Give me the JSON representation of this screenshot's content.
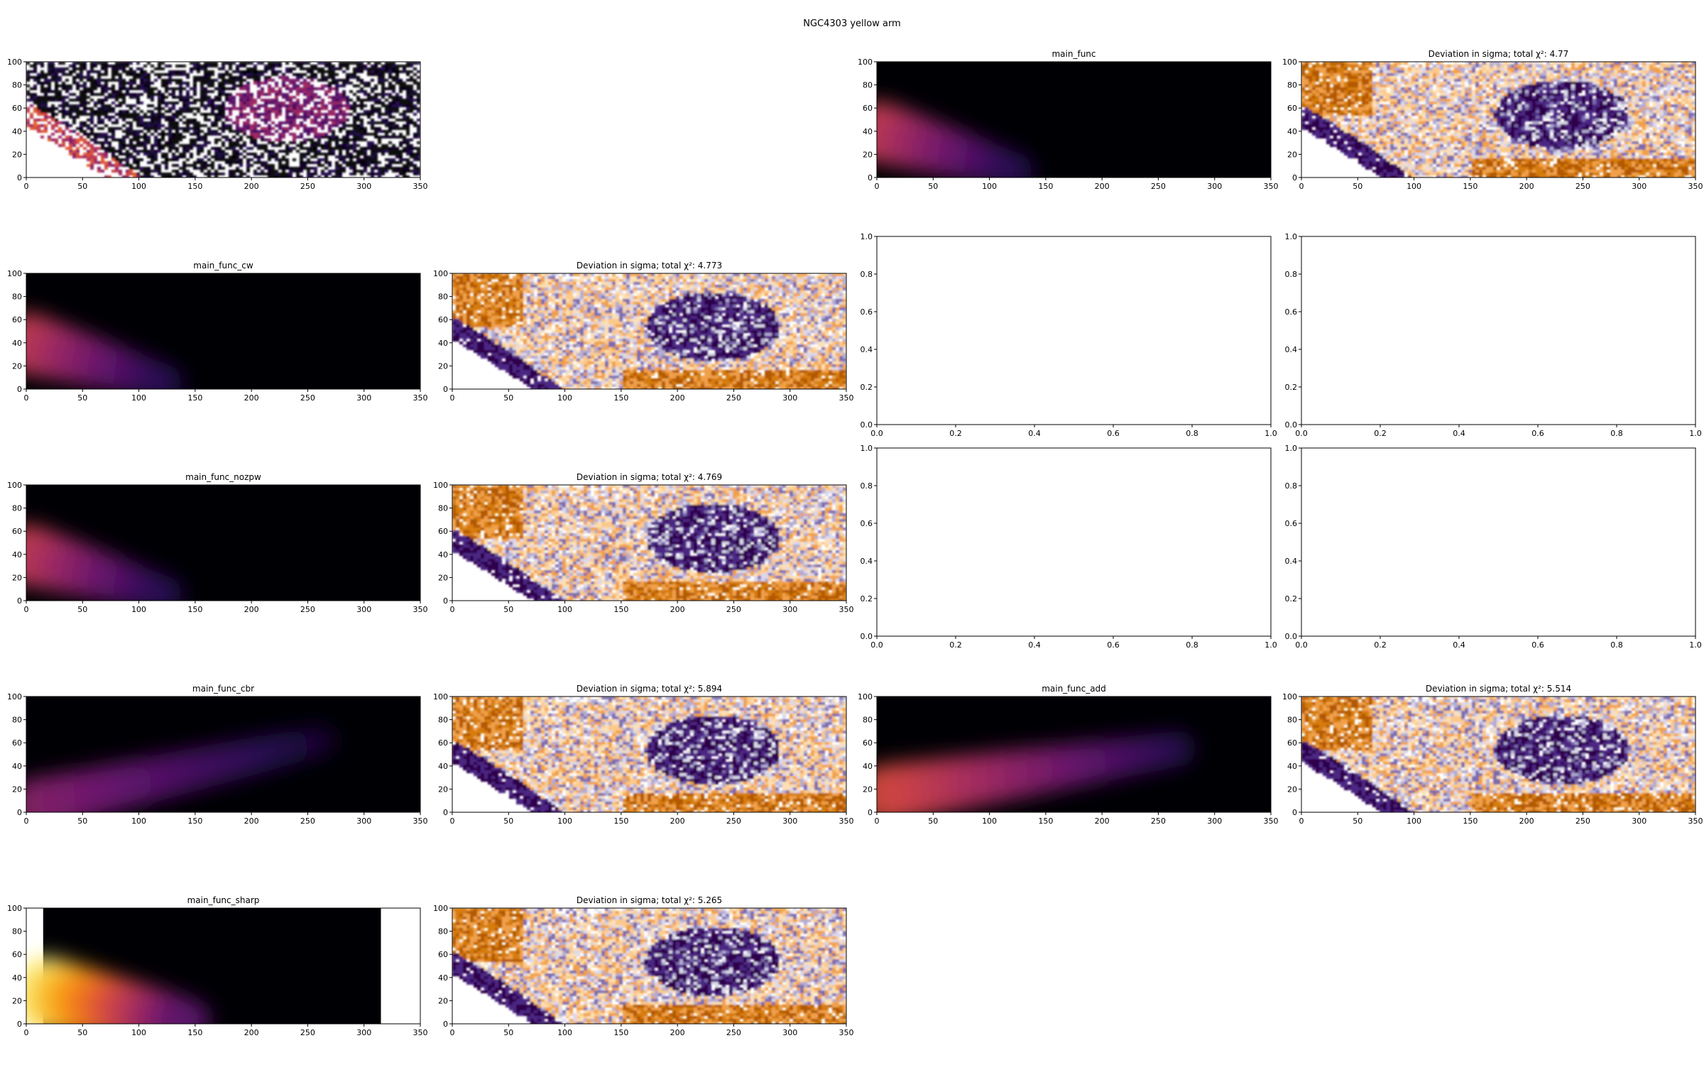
{
  "figure": {
    "title": "NGC4303 yellow arm"
  },
  "colors": {
    "inferno_dark": "#000004",
    "inferno_purple": "#57106e",
    "inferno_magenta": "#bc3754",
    "inferno_orange": "#f98e09",
    "inferno_yellow": "#fcffa4",
    "puor_orange": "#b35806",
    "puor_purple": "#2d004b"
  },
  "chart_data": [
    {
      "id": "p00",
      "type": "heatmap",
      "title": "",
      "content": "data",
      "xlim": [
        0,
        350
      ],
      "ylim": [
        0,
        100
      ],
      "xticks": [
        0,
        50,
        100,
        150,
        200,
        250,
        300,
        350
      ],
      "yticks": [
        0,
        20,
        40,
        60,
        80,
        100
      ]
    },
    {
      "id": "p02",
      "type": "heatmap",
      "title": "main_func",
      "content": "model",
      "model": {
        "band_start": [
          0,
          40
        ],
        "band_end": [
          125,
          5
        ],
        "width": 22,
        "peak": 0.55
      },
      "xlim": [
        0,
        350
      ],
      "ylim": [
        0,
        100
      ],
      "xticks": [
        0,
        50,
        100,
        150,
        200,
        250,
        300,
        350
      ],
      "yticks": [
        0,
        20,
        40,
        60,
        80,
        100
      ]
    },
    {
      "id": "p03",
      "type": "heatmap",
      "title": "Deviation in sigma; total χ²: 4.77",
      "content": "residual",
      "chi2": 4.77,
      "xlim": [
        0,
        350
      ],
      "ylim": [
        0,
        100
      ],
      "xticks": [
        0,
        50,
        100,
        150,
        200,
        250,
        300,
        350
      ],
      "yticks": [
        0,
        20,
        40,
        60,
        80,
        100
      ]
    },
    {
      "id": "p10",
      "type": "heatmap",
      "title": "main_func_cw",
      "content": "model",
      "model": {
        "band_start": [
          0,
          40
        ],
        "band_end": [
          125,
          5
        ],
        "width": 22,
        "peak": 0.55
      },
      "xlim": [
        0,
        350
      ],
      "ylim": [
        0,
        100
      ],
      "xticks": [
        0,
        50,
        100,
        150,
        200,
        250,
        300,
        350
      ],
      "yticks": [
        0,
        20,
        40,
        60,
        80,
        100
      ]
    },
    {
      "id": "p11",
      "type": "heatmap",
      "title": "Deviation in sigma; total χ²: 4.773",
      "content": "residual",
      "chi2": 4.773,
      "xlim": [
        0,
        350
      ],
      "ylim": [
        0,
        100
      ],
      "xticks": [
        0,
        50,
        100,
        150,
        200,
        250,
        300,
        350
      ],
      "yticks": [
        0,
        20,
        40,
        60,
        80,
        100
      ]
    },
    {
      "id": "p12",
      "type": "empty",
      "title": "",
      "xlim": [
        0,
        1
      ],
      "ylim": [
        0,
        1
      ],
      "xticks": [
        0.0,
        0.2,
        0.4,
        0.6,
        0.8,
        1.0
      ],
      "yticks": [
        0.0,
        0.2,
        0.4,
        0.6,
        0.8,
        1.0
      ]
    },
    {
      "id": "p13",
      "type": "empty",
      "title": "",
      "xlim": [
        0,
        1
      ],
      "ylim": [
        0,
        1
      ],
      "xticks": [
        0.0,
        0.2,
        0.4,
        0.6,
        0.8,
        1.0
      ],
      "yticks": [
        0.0,
        0.2,
        0.4,
        0.6,
        0.8,
        1.0
      ]
    },
    {
      "id": "p20",
      "type": "heatmap",
      "title": "main_func_nozpw",
      "content": "model",
      "model": {
        "band_start": [
          0,
          40
        ],
        "band_end": [
          125,
          5
        ],
        "width": 22,
        "peak": 0.55
      },
      "xlim": [
        0,
        350
      ],
      "ylim": [
        0,
        100
      ],
      "xticks": [
        0,
        50,
        100,
        150,
        200,
        250,
        300,
        350
      ],
      "yticks": [
        0,
        20,
        40,
        60,
        80,
        100
      ]
    },
    {
      "id": "p21",
      "type": "heatmap",
      "title": "Deviation in sigma; total χ²: 4.769",
      "content": "residual",
      "chi2": 4.769,
      "xlim": [
        0,
        350
      ],
      "ylim": [
        0,
        100
      ],
      "xticks": [
        0,
        50,
        100,
        150,
        200,
        250,
        300,
        350
      ],
      "yticks": [
        0,
        20,
        40,
        60,
        80,
        100
      ]
    },
    {
      "id": "p22",
      "type": "empty",
      "title": "",
      "xlim": [
        0,
        1
      ],
      "ylim": [
        0,
        1
      ],
      "xticks": [
        0.0,
        0.2,
        0.4,
        0.6,
        0.8,
        1.0
      ],
      "yticks": [
        0.0,
        0.2,
        0.4,
        0.6,
        0.8,
        1.0
      ]
    },
    {
      "id": "p23",
      "type": "empty",
      "title": "",
      "xlim": [
        0,
        1
      ],
      "ylim": [
        0,
        1
      ],
      "xticks": [
        0.0,
        0.2,
        0.4,
        0.6,
        0.8,
        1.0
      ],
      "yticks": [
        0.0,
        0.2,
        0.4,
        0.6,
        0.8,
        1.0
      ]
    },
    {
      "id": "p30",
      "type": "heatmap",
      "title": "main_func_cbr",
      "content": "model",
      "model": {
        "band_start": [
          5,
          5
        ],
        "band_end": [
          262,
          62
        ],
        "width": 20,
        "peak": 0.38
      },
      "xlim": [
        0,
        350
      ],
      "ylim": [
        0,
        100
      ],
      "xticks": [
        0,
        50,
        100,
        150,
        200,
        250,
        300,
        350
      ],
      "yticks": [
        0,
        20,
        40,
        60,
        80,
        100
      ]
    },
    {
      "id": "p31",
      "type": "heatmap",
      "title": "Deviation in sigma; total χ²: 5.894",
      "content": "residual",
      "chi2": 5.894,
      "xlim": [
        0,
        350
      ],
      "ylim": [
        0,
        100
      ],
      "xticks": [
        0,
        50,
        100,
        150,
        200,
        250,
        300,
        350
      ],
      "yticks": [
        0,
        20,
        40,
        60,
        80,
        100
      ]
    },
    {
      "id": "p32",
      "type": "heatmap",
      "title": "main_func_add",
      "content": "model",
      "model": {
        "band_start": [
          5,
          15
        ],
        "band_end": [
          268,
          55
        ],
        "width": 22,
        "peak": 0.6
      },
      "xlim": [
        0,
        350
      ],
      "ylim": [
        0,
        100
      ],
      "xticks": [
        0,
        50,
        100,
        150,
        200,
        250,
        300,
        350
      ],
      "yticks": [
        0,
        20,
        40,
        60,
        80,
        100
      ]
    },
    {
      "id": "p33",
      "type": "heatmap",
      "title": "Deviation in sigma; total χ²: 5.514",
      "content": "residual",
      "chi2": 5.514,
      "xlim": [
        0,
        350
      ],
      "ylim": [
        0,
        100
      ],
      "xticks": [
        0,
        50,
        100,
        150,
        200,
        250,
        300,
        350
      ],
      "yticks": [
        0,
        20,
        40,
        60,
        80,
        100
      ]
    },
    {
      "id": "p40",
      "type": "heatmap",
      "title": "main_func_sharp",
      "content": "model",
      "model": {
        "data_x": [
          15,
          315
        ],
        "band_start": [
          15,
          25
        ],
        "band_end": [
          145,
          2
        ],
        "width": 28,
        "peak": 1.0
      },
      "xlim": [
        0,
        350
      ],
      "ylim": [
        0,
        100
      ],
      "xticks": [
        0,
        50,
        100,
        150,
        200,
        250,
        300,
        350
      ],
      "yticks": [
        0,
        20,
        40,
        60,
        80,
        100
      ]
    },
    {
      "id": "p41",
      "type": "heatmap",
      "title": "Deviation in sigma; total χ²: 5.265",
      "content": "residual",
      "chi2": 5.265,
      "xlim": [
        0,
        350
      ],
      "ylim": [
        0,
        100
      ],
      "xticks": [
        0,
        50,
        100,
        150,
        200,
        250,
        300,
        350
      ],
      "yticks": [
        0,
        20,
        40,
        60,
        80,
        100
      ]
    }
  ]
}
